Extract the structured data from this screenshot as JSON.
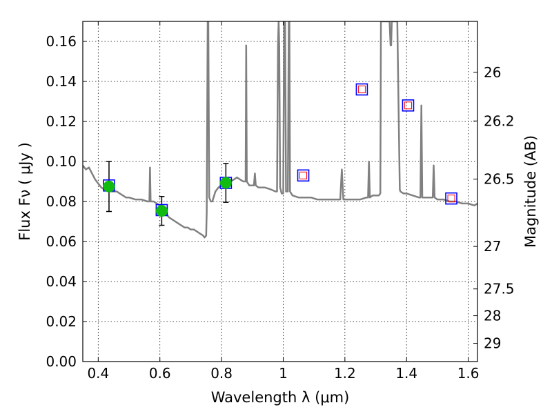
{
  "chart_data": {
    "type": "scatter",
    "xlabel": "Wavelength  λ (μm)",
    "ylabel": "Flux  Fν  ( μJy )",
    "ylabel_right": "Magnitude (AB)",
    "xlim": [
      0.35,
      1.63
    ],
    "ylim": [
      0.0,
      0.17
    ],
    "x_ticks": [
      0.4,
      0.6,
      0.8,
      1.0,
      1.2,
      1.4,
      1.6
    ],
    "x_tick_labels": [
      "0.4",
      "0.6",
      "0.8",
      "1",
      "1.2",
      "1.4",
      "1.6"
    ],
    "y_ticks": [
      0.0,
      0.02,
      0.04,
      0.06,
      0.08,
      0.1,
      0.12,
      0.14,
      0.16
    ],
    "y_tick_labels": [
      "0.00",
      "0.02",
      "0.04",
      "0.06",
      "0.08",
      "0.10",
      "0.12",
      "0.14",
      "0.16"
    ],
    "right_ticks": [
      {
        "label": "26",
        "mag": 26.0
      },
      {
        "label": "26.2",
        "mag": 26.2
      },
      {
        "label": "26.5",
        "mag": 26.5
      },
      {
        "label": "27",
        "mag": 27.0
      },
      {
        "label": "27.5",
        "mag": 27.5
      },
      {
        "label": "28",
        "mag": 28.0
      },
      {
        "label": "29",
        "mag": 29.0
      }
    ],
    "grid": true,
    "colors": {
      "spectrum": "#808080",
      "measured": "#11bb11",
      "model_box": "#0000ff",
      "model_inner": "#ff0000",
      "axis": "#000000"
    },
    "model_spectrum": [
      [
        0.35,
        0.098
      ],
      [
        0.36,
        0.096
      ],
      [
        0.37,
        0.097
      ],
      [
        0.38,
        0.094
      ],
      [
        0.39,
        0.091
      ],
      [
        0.4,
        0.089
      ],
      [
        0.41,
        0.087
      ],
      [
        0.42,
        0.086
      ],
      [
        0.43,
        0.086
      ],
      [
        0.44,
        0.085
      ],
      [
        0.45,
        0.085
      ],
      [
        0.46,
        0.085
      ],
      [
        0.47,
        0.084
      ],
      [
        0.48,
        0.083
      ],
      [
        0.49,
        0.082
      ],
      [
        0.5,
        0.082
      ],
      [
        0.52,
        0.081
      ],
      [
        0.54,
        0.081
      ],
      [
        0.56,
        0.08
      ],
      [
        0.566,
        0.08
      ],
      [
        0.568,
        0.097
      ],
      [
        0.57,
        0.08
      ],
      [
        0.58,
        0.08
      ],
      [
        0.59,
        0.079
      ],
      [
        0.6,
        0.078
      ],
      [
        0.61,
        0.076
      ],
      [
        0.62,
        0.074
      ],
      [
        0.63,
        0.072
      ],
      [
        0.64,
        0.071
      ],
      [
        0.65,
        0.07
      ],
      [
        0.66,
        0.069
      ],
      [
        0.67,
        0.068
      ],
      [
        0.68,
        0.067
      ],
      [
        0.69,
        0.067
      ],
      [
        0.7,
        0.066
      ],
      [
        0.71,
        0.066
      ],
      [
        0.72,
        0.065
      ],
      [
        0.73,
        0.064
      ],
      [
        0.74,
        0.063
      ],
      [
        0.745,
        0.062
      ],
      [
        0.75,
        0.063
      ],
      [
        0.752,
        0.075
      ],
      [
        0.755,
        0.17
      ],
      [
        0.757,
        0.17
      ],
      [
        0.76,
        0.082
      ],
      [
        0.765,
        0.08
      ],
      [
        0.77,
        0.08
      ],
      [
        0.78,
        0.085
      ],
      [
        0.79,
        0.087
      ],
      [
        0.8,
        0.088
      ],
      [
        0.81,
        0.089
      ],
      [
        0.82,
        0.09
      ],
      [
        0.83,
        0.09
      ],
      [
        0.84,
        0.091
      ],
      [
        0.85,
        0.092
      ],
      [
        0.86,
        0.091
      ],
      [
        0.87,
        0.09
      ],
      [
        0.878,
        0.09
      ],
      [
        0.88,
        0.158
      ],
      [
        0.882,
        0.09
      ],
      [
        0.89,
        0.088
      ],
      [
        0.9,
        0.088
      ],
      [
        0.905,
        0.088
      ],
      [
        0.908,
        0.094
      ],
      [
        0.911,
        0.088
      ],
      [
        0.92,
        0.087
      ],
      [
        0.94,
        0.087
      ],
      [
        0.96,
        0.086
      ],
      [
        0.975,
        0.085
      ],
      [
        0.98,
        0.085
      ],
      [
        0.983,
        0.158
      ],
      [
        0.985,
        0.17
      ],
      [
        0.987,
        0.158
      ],
      [
        0.99,
        0.087
      ],
      [
        0.995,
        0.084
      ],
      [
        1.0,
        0.084
      ],
      [
        1.003,
        0.17
      ],
      [
        1.006,
        0.17
      ],
      [
        1.009,
        0.085
      ],
      [
        1.015,
        0.085
      ],
      [
        1.018,
        0.17
      ],
      [
        1.02,
        0.17
      ],
      [
        1.022,
        0.085
      ],
      [
        1.03,
        0.083
      ],
      [
        1.05,
        0.082
      ],
      [
        1.07,
        0.082
      ],
      [
        1.09,
        0.082
      ],
      [
        1.11,
        0.081
      ],
      [
        1.13,
        0.081
      ],
      [
        1.15,
        0.081
      ],
      [
        1.17,
        0.081
      ],
      [
        1.185,
        0.081
      ],
      [
        1.19,
        0.096
      ],
      [
        1.195,
        0.081
      ],
      [
        1.21,
        0.081
      ],
      [
        1.23,
        0.081
      ],
      [
        1.25,
        0.081
      ],
      [
        1.27,
        0.082
      ],
      [
        1.275,
        0.082
      ],
      [
        1.278,
        0.1
      ],
      [
        1.281,
        0.082
      ],
      [
        1.29,
        0.083
      ],
      [
        1.3,
        0.083
      ],
      [
        1.31,
        0.083
      ],
      [
        1.315,
        0.084
      ],
      [
        1.317,
        0.17
      ],
      [
        1.345,
        0.17
      ],
      [
        1.348,
        0.158
      ],
      [
        1.35,
        0.158
      ],
      [
        1.352,
        0.17
      ],
      [
        1.355,
        0.17
      ],
      [
        1.36,
        0.17
      ],
      [
        1.37,
        0.17
      ],
      [
        1.378,
        0.086
      ],
      [
        1.38,
        0.085
      ],
      [
        1.39,
        0.084
      ],
      [
        1.4,
        0.084
      ],
      [
        1.42,
        0.083
      ],
      [
        1.44,
        0.082
      ],
      [
        1.445,
        0.082
      ],
      [
        1.448,
        0.128
      ],
      [
        1.451,
        0.082
      ],
      [
        1.46,
        0.082
      ],
      [
        1.47,
        0.082
      ],
      [
        1.48,
        0.082
      ],
      [
        1.485,
        0.082
      ],
      [
        1.488,
        0.098
      ],
      [
        1.491,
        0.082
      ],
      [
        1.5,
        0.081
      ],
      [
        1.52,
        0.081
      ],
      [
        1.54,
        0.08
      ],
      [
        1.56,
        0.08
      ],
      [
        1.58,
        0.079
      ],
      [
        1.6,
        0.079
      ],
      [
        1.62,
        0.078
      ],
      [
        1.63,
        0.079
      ]
    ],
    "measured_points": [
      {
        "x": 0.435,
        "y": 0.0875,
        "err": 0.0125
      },
      {
        "x": 0.606,
        "y": 0.0753,
        "err": 0.0072
      },
      {
        "x": 0.814,
        "y": 0.0893,
        "err": 0.0097
      }
    ],
    "model_points": [
      {
        "x": 0.435,
        "y": 0.088,
        "inner": false
      },
      {
        "x": 0.606,
        "y": 0.0757,
        "inner": false
      },
      {
        "x": 0.814,
        "y": 0.0893,
        "inner": false
      },
      {
        "x": 1.065,
        "y": 0.093,
        "inner": true
      },
      {
        "x": 1.255,
        "y": 0.136,
        "inner": true
      },
      {
        "x": 1.405,
        "y": 0.128,
        "inner": true
      },
      {
        "x": 1.545,
        "y": 0.0815,
        "inner": true
      }
    ]
  }
}
